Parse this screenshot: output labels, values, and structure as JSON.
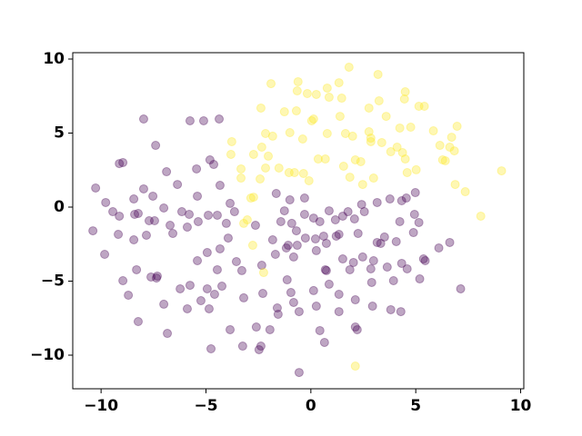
{
  "chart_data": {
    "type": "scatter",
    "xlim": [
      -11.35,
      10.15
    ],
    "ylim": [
      -12.27,
      10.43
    ],
    "xticks": [
      {
        "value": -10,
        "label": "−10"
      },
      {
        "value": -5,
        "label": "−5"
      },
      0,
      5,
      10
    ],
    "yticks": [
      {
        "value": -10,
        "label": "−10"
      },
      {
        "value": -5,
        "label": "−5"
      },
      0,
      5,
      10
    ],
    "grid": false,
    "series": [
      {
        "color": "#440154",
        "x": [
          -7.97,
          -7.4,
          -5.76,
          -5.11,
          -4.37,
          -9.13,
          -8.96,
          -6.88,
          -5.45,
          -4.81,
          -4.63,
          -10.26,
          -9.78,
          -8.44,
          -7.97,
          -7.53,
          -6.36,
          -5.41,
          -4.33,
          -10.39,
          -9.83,
          -9.44,
          -9.13,
          -9.18,
          -8.4,
          -8.23,
          -8.44,
          -7.71,
          -7.84,
          -7.45,
          -7.01,
          -6.71,
          -6.58,
          -6.15,
          -5.8,
          -5.89,
          -5.37,
          -4.89,
          -4.46,
          -4.03,
          -4.94,
          -5.41,
          -4.33,
          -4.46,
          -3.55,
          -3.94,
          -8.31,
          -8.96,
          -7.32,
          -7.62,
          -7.36,
          -8.7,
          -6.23,
          -5.76,
          -4.94,
          -4.24,
          -5.24,
          -4.59,
          -8.23,
          -7.01,
          -6.84,
          -5.89,
          -4.85,
          -4.76,
          -3.85,
          -3.25,
          -2.38,
          -2.47,
          -2.6,
          -1.95,
          -3.2,
          -2.29,
          -0.95,
          -0.82,
          -1.6,
          -1.56,
          -0.56,
          0.26,
          0.43,
          0.65,
          -0.56,
          1.34,
          1.34,
          2.12,
          2.21,
          2.12,
          2.9,
          3.94,
          3.81,
          4.29,
          5.19,
          4.59,
          5.37,
          5.45,
          6.1,
          6.62,
          7.14,
          3.64,
          2.86,
          2.99,
          3.16,
          3.33,
          3.51,
          4.07,
          4.89,
          5.15,
          4.94,
          4.24,
          4.98,
          4.33,
          4.55,
          3.77,
          3.16,
          2.42,
          2.55,
          2.08,
          1.77,
          0.87,
          0.43,
          -0.3,
          0.13,
          -1.0,
          -0.3,
          -0.91,
          -1.43,
          -0.69,
          -1.82,
          -1.08,
          -1.69,
          -0.82,
          -0.65,
          -0.26,
          0.26,
          0.74,
          0.22,
          0.61,
          1.34,
          1.52,
          2.03,
          1.86,
          2.47,
          1.52,
          1.17,
          1.21,
          0.69,
          0.87,
          0.13,
          -1.13,
          -2.34,
          -3.29,
          -3.64,
          -3.85,
          -1.26,
          -1.65,
          0.74,
          -1.17,
          -2.64,
          2.94,
          4.33,
          2.25
        ],
        "values": [
          5.95,
          4.17,
          5.83,
          5.83,
          5.95,
          2.94,
          3.01,
          2.39,
          2.58,
          3.19,
          2.88,
          1.29,
          0.31,
          0.55,
          1.23,
          0.74,
          1.53,
          0.74,
          1.47,
          -1.6,
          -3.19,
          -0.31,
          -0.61,
          -1.84,
          -0.49,
          -0.43,
          -2.21,
          -0.92,
          -1.9,
          -0.92,
          -0.06,
          -1.23,
          -1.78,
          -0.31,
          -0.49,
          -1.35,
          -0.98,
          -0.55,
          -0.55,
          -1.1,
          -3.07,
          -3.62,
          -2.82,
          -4.23,
          -3.68,
          -2.09,
          -4.23,
          -4.97,
          -4.66,
          -4.72,
          -4.79,
          -5.95,
          -5.52,
          -5.28,
          -5.52,
          -5.34,
          -6.32,
          -5.89,
          -7.73,
          -6.56,
          -8.53,
          -6.87,
          -6.87,
          -9.57,
          -8.28,
          -9.39,
          -9.39,
          -9.63,
          -8.1,
          -8.28,
          -6.13,
          -5.83,
          -5.77,
          -6.44,
          -6.81,
          -7.24,
          -7.06,
          -6.69,
          -8.34,
          -9.14,
          -11.17,
          -7.06,
          -5.89,
          -8.1,
          -8.28,
          -6.26,
          -5.09,
          -4.97,
          -6.93,
          -7.06,
          -4.85,
          -4.17,
          -3.5,
          -3.62,
          -2.76,
          -2.39,
          -5.52,
          -4.05,
          -4.17,
          -3.62,
          -2.39,
          -2.45,
          -2.02,
          -2.33,
          -1.72,
          -1.04,
          -0.49,
          -0.98,
          0.98,
          0.43,
          0.61,
          0.55,
          0.31,
          0.18,
          -0.31,
          -0.8,
          -0.31,
          -0.25,
          -0.98,
          -0.49,
          -0.74,
          0.49,
          0.61,
          -1.1,
          -0.98,
          -1.6,
          -2.21,
          -2.58,
          -3.19,
          -3.37,
          -2.58,
          -2.09,
          -2.94,
          -2.45,
          -2.15,
          -1.96,
          -1.84,
          -3.5,
          -3.74,
          -4.23,
          -3.37,
          -0.61,
          -0.86,
          -1.96,
          -4.23,
          -5.21,
          -5.64,
          -4.91,
          -3.93,
          -4.29,
          -0.31,
          0.25,
          -0.25,
          0.92,
          -4.29,
          -2.76,
          -1.23,
          -6.69,
          -3.8,
          -1.78
        ]
      },
      {
        "color": "#fde725",
        "x": [
          1.82,
          3.2,
          -0.61,
          1.34,
          -1.9,
          -0.65,
          -0.17,
          0.26,
          0.78,
          4.5,
          4.46,
          5.15,
          5.41,
          3.25,
          1.47,
          -2.38,
          -0.69,
          -1.26,
          1.39,
          3.59,
          0.04,
          0.13,
          2.77,
          5.84,
          6.97,
          4.24,
          4.76,
          2.77,
          2.86,
          -3.77,
          -2.16,
          -1.82,
          -1.0,
          -0.39,
          0.78,
          1.65,
          1.99,
          2.86,
          3.38,
          3.81,
          4.11,
          4.37,
          6.15,
          6.71,
          6.28,
          6.62,
          6.84,
          6.41,
          4.5,
          5.02,
          9.09,
          4.59,
          2.12,
          2.38,
          0.69,
          0.35,
          -1.52,
          -2.16,
          -3.33,
          -2.42,
          -3.33,
          -0.78,
          -0.35,
          -0.09,
          1.56,
          1.86,
          2.99,
          6.88,
          7.36,
          8.1,
          -2.73,
          -2.86,
          -3.2,
          -3.03,
          -2.77,
          -2.25,
          2.12,
          2.47,
          -1.04,
          -2.73,
          -3.81,
          -2.34,
          0.87,
          -2.03
        ],
        "values": [
          9.45,
          8.96,
          8.47,
          8.4,
          8.34,
          7.85,
          7.67,
          7.61,
          8.04,
          7.79,
          7.3,
          6.81,
          6.81,
          7.18,
          7.36,
          6.69,
          6.5,
          6.44,
          6.13,
          6.13,
          5.83,
          5.95,
          6.69,
          5.15,
          5.46,
          5.34,
          5.4,
          5.09,
          4.66,
          4.42,
          4.97,
          4.79,
          5.03,
          4.6,
          4.97,
          4.97,
          4.79,
          4.42,
          4.36,
          3.74,
          4.05,
          3.68,
          4.17,
          4.72,
          3.19,
          4.05,
          3.8,
          3.13,
          3.25,
          2.52,
          2.45,
          2.33,
          3.19,
          3.07,
          3.25,
          3.25,
          2.64,
          2.64,
          2.58,
          1.9,
          1.96,
          2.33,
          2.27,
          1.78,
          2.76,
          2.02,
          1.96,
          1.53,
          1.04,
          -0.61,
          0.67,
          0.61,
          -1.1,
          -0.86,
          -2.58,
          -4.42,
          -10.74,
          1.53,
          2.33,
          3.56,
          3.56,
          4.05,
          7.42,
          3.44
        ]
      }
    ]
  }
}
